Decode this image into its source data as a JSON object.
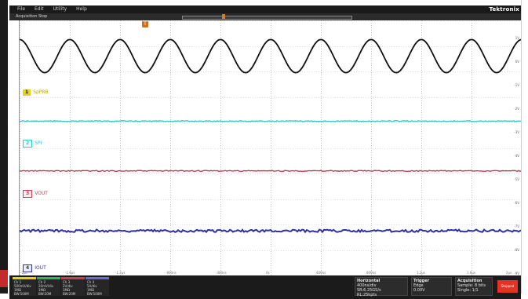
{
  "menu": {
    "items": [
      "File",
      "Edit",
      "Utility",
      "Help"
    ],
    "brand": "Tektronix"
  },
  "acquisition": {
    "label": "Acquisition Stop"
  },
  "trigger_marker": "T",
  "channels": [
    {
      "id": "ch1",
      "label": "SpPRB",
      "color": "#e7d21a",
      "trace": "sine",
      "y": 0.175
    },
    {
      "id": "ch2",
      "label": "SPI",
      "color": "#35c6cf",
      "trace": "flat",
      "y": 0.395
    },
    {
      "id": "ch3",
      "label": "VOUT",
      "color": "#cf3b55",
      "trace": "flat",
      "y": 0.59
    },
    {
      "id": "ch4",
      "label": "IOUT",
      "color": "#2f2fa8",
      "trace": "flat",
      "y": 0.825
    }
  ],
  "colors": {
    "sine": "#111111",
    "grid": "#bdbdbd",
    "gridMajor": "#9a9a9a"
  },
  "sine": {
    "cycles": 10
  },
  "bottom": {
    "ch_boxes": [
      {
        "id": "ch1",
        "color": "#e7d21a",
        "lines": [
          "Ch 1",
          "500mV/div",
          "1MΩ",
          "BW:500M"
        ]
      },
      {
        "id": "ch2",
        "color": "#34b26a",
        "lines": [
          "Ch 2",
          "20mV/div",
          "1MΩ",
          "BW:20M"
        ]
      },
      {
        "id": "ch3",
        "color": "#cf3b55",
        "lines": [
          "Ch 3",
          "2V/div",
          "1MΩ",
          "BW:20M"
        ]
      },
      {
        "id": "ch4",
        "color": "#6b6bd0",
        "lines": [
          "Ch 4",
          "5A/div",
          "1MΩ",
          "BW:500M"
        ]
      }
    ],
    "controls": [
      {
        "name": "horizontal",
        "title": "Horizontal",
        "lines": [
          "400ns/div",
          "SR:6.25GS/s",
          "RL:25kpts"
        ]
      },
      {
        "name": "trigger",
        "title": "Trigger",
        "lines": [
          "Edge",
          "0.00V"
        ]
      },
      {
        "name": "acq",
        "title": "Acquisition",
        "lines": [
          "Sample: 8 bits",
          "Single: 1/1"
        ]
      }
    ],
    "run_label": "Stopped"
  },
  "right_scale": [
    "1V",
    "0V",
    "-1V",
    "-2V",
    "-3V",
    "-4V",
    "-5V",
    "-6V",
    "-7V",
    "-8V",
    "-9V"
  ],
  "x_ticks": [
    "-2µs",
    "-1.6µs",
    "-1.2µs",
    "-800ns",
    "-400ns",
    "0s",
    "400ns",
    "800ns",
    "1.2µs",
    "1.6µs",
    "2µs"
  ]
}
